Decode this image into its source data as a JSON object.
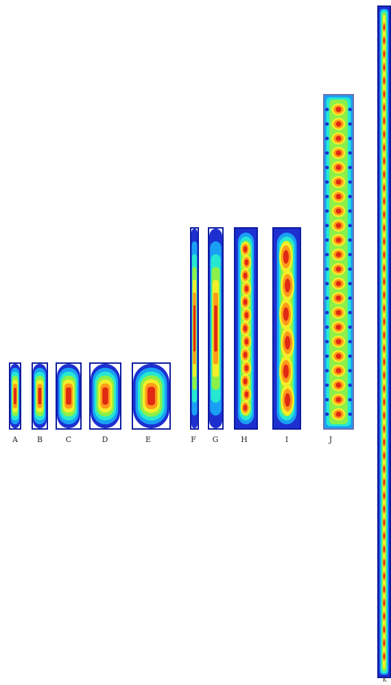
{
  "panels": [
    {
      "id": "A",
      "label": "A"
    },
    {
      "id": "B",
      "label": "B"
    },
    {
      "id": "C",
      "label": "C"
    },
    {
      "id": "D",
      "label": "D"
    },
    {
      "id": "E",
      "label": "E"
    },
    {
      "id": "F",
      "label": "F"
    },
    {
      "id": "G",
      "label": "G"
    },
    {
      "id": "H",
      "label": "H"
    },
    {
      "id": "I",
      "label": "I"
    },
    {
      "id": "J",
      "label": "J"
    },
    {
      "id": "K",
      "label": "K"
    }
  ],
  "colors": {
    "outer": "#1e2fd0",
    "ring1": "#19a0f5",
    "ring2": "#26e8d0",
    "ring3": "#8cf048",
    "ring4": "#f3ee2a",
    "ring5": "#ff9a1a",
    "core": "#e02a14"
  }
}
